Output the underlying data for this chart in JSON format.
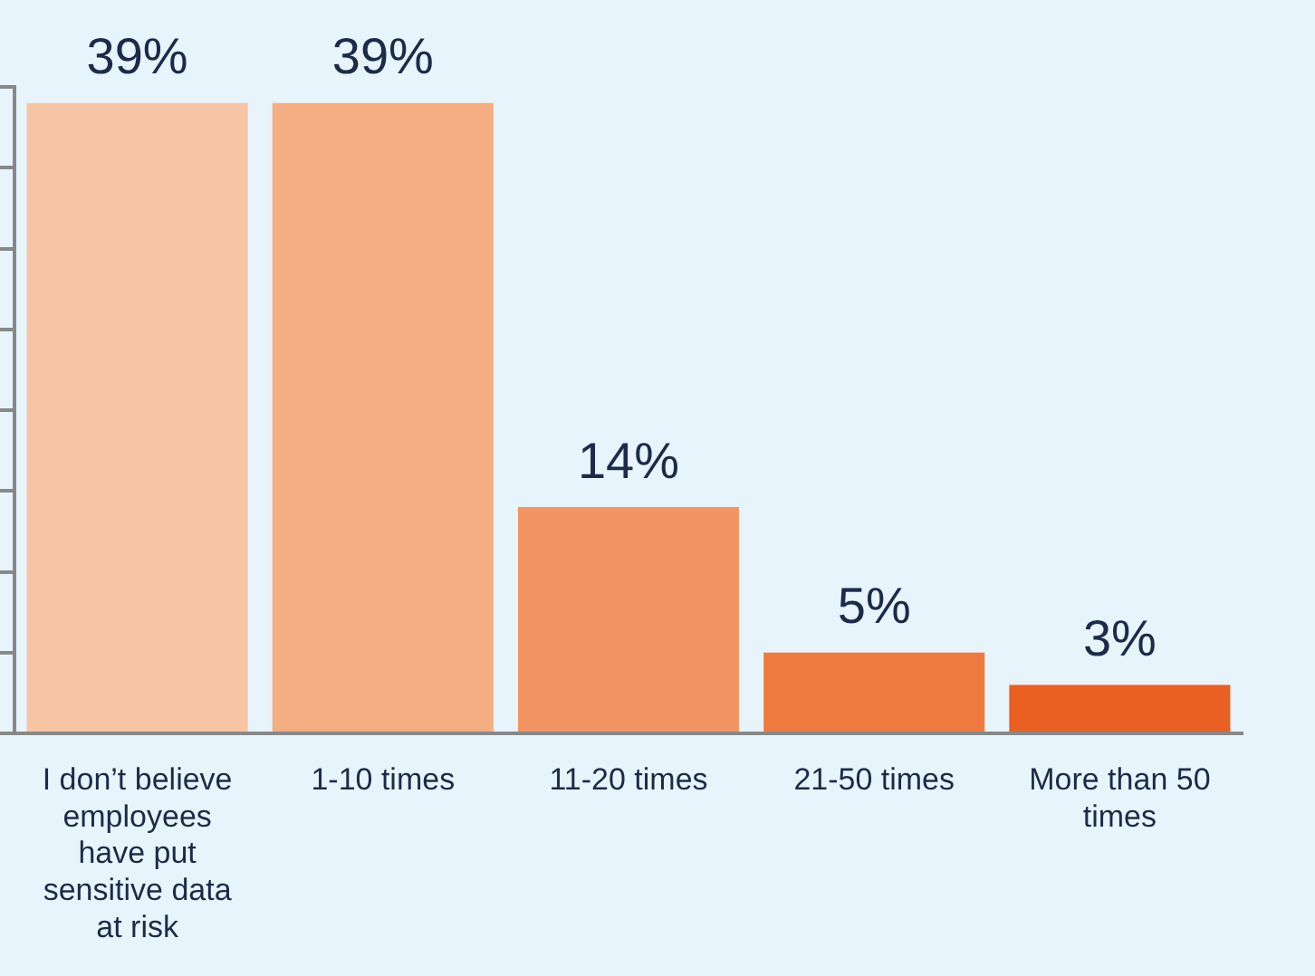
{
  "chart_data": {
    "type": "bar",
    "categories": [
      "I don’t believe employees have put sensitive data at risk",
      "1-10 times",
      "11-20 times",
      "21-50 times",
      "More than 50 times"
    ],
    "values": [
      39,
      39,
      14,
      5,
      3
    ],
    "colors": [
      "#f8c5a4",
      "#f5ad82",
      "#f29563",
      "#ef7a40",
      "#ea5f22"
    ],
    "value_labels": [
      "39%",
      "39%",
      "14%",
      "5%",
      "3%"
    ],
    "ylim": [
      0,
      40
    ],
    "yticks": [
      {
        "value": 0,
        "label": null
      },
      {
        "value": 5,
        "label": null
      },
      {
        "value": 10,
        "label": null
      },
      {
        "value": 15,
        "label": null
      },
      {
        "value": 20,
        "label": null
      },
      {
        "value": 25,
        "label": null
      },
      {
        "value": 30,
        "label": null
      },
      {
        "value": 35,
        "label": null
      },
      {
        "value": 40,
        "label": null
      }
    ],
    "grid": false,
    "legend": false,
    "tick_labels": "x"
  }
}
